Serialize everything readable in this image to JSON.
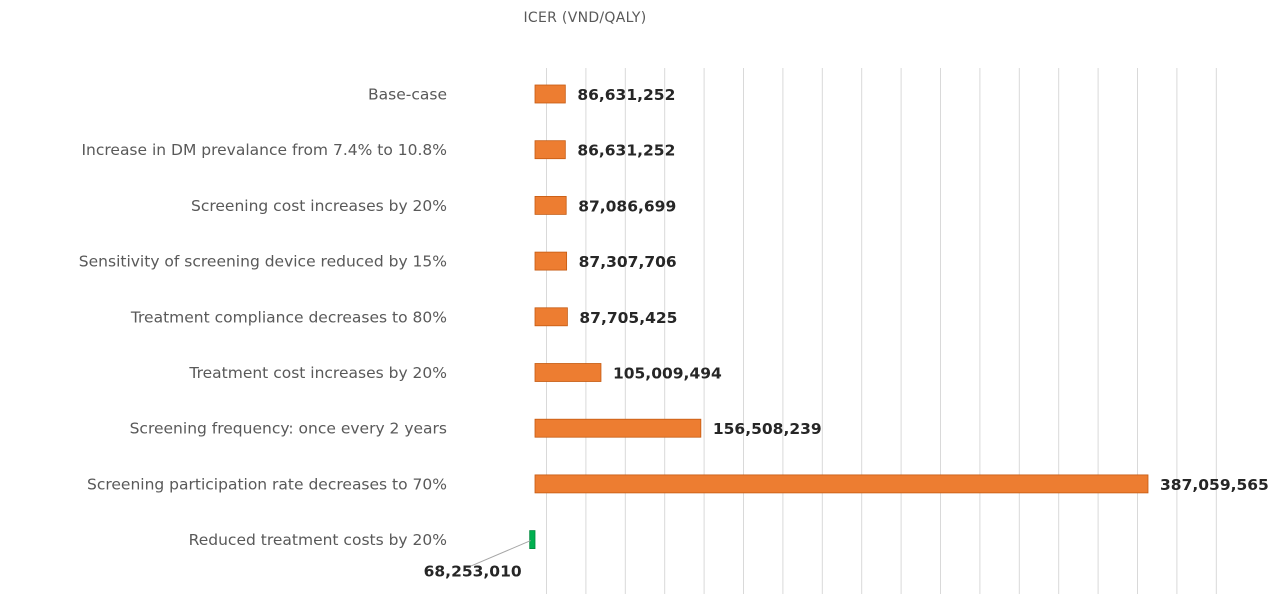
{
  "chart_data": {
    "type": "bar",
    "orientation": "horizontal",
    "title": "ICER (VND/QALY)",
    "grid": true,
    "categories": [
      "Base-case",
      "Increase in DM prevalance from 7.4% to 10.8%",
      "Screening cost increases by 20%",
      "Sensitivity of screening device reduced by 15%",
      "Treatment compliance decreases to 80%",
      "Treatment cost increases by 20%",
      "Screening frequency: once every 2 years",
      "Screening participation rate decreases to 70%",
      "Reduced treatment costs by 20%"
    ],
    "values": [
      86631252,
      86631252,
      87086699,
      87307706,
      87705425,
      105009494,
      156508239,
      387059565,
      68253010
    ],
    "value_labels": [
      "86,631,252",
      "86,631,252",
      "87,086,699",
      "87,307,706",
      "87,705,425",
      "105,009,494",
      "156,508,239",
      "387,059,565",
      "68,253,010"
    ],
    "baseline_value": 71000000,
    "colors": {
      "increase": "#ED7D31",
      "decrease": "#00B050",
      "increase_border": "#C55A11",
      "decrease_border": "#008A3E"
    }
  }
}
